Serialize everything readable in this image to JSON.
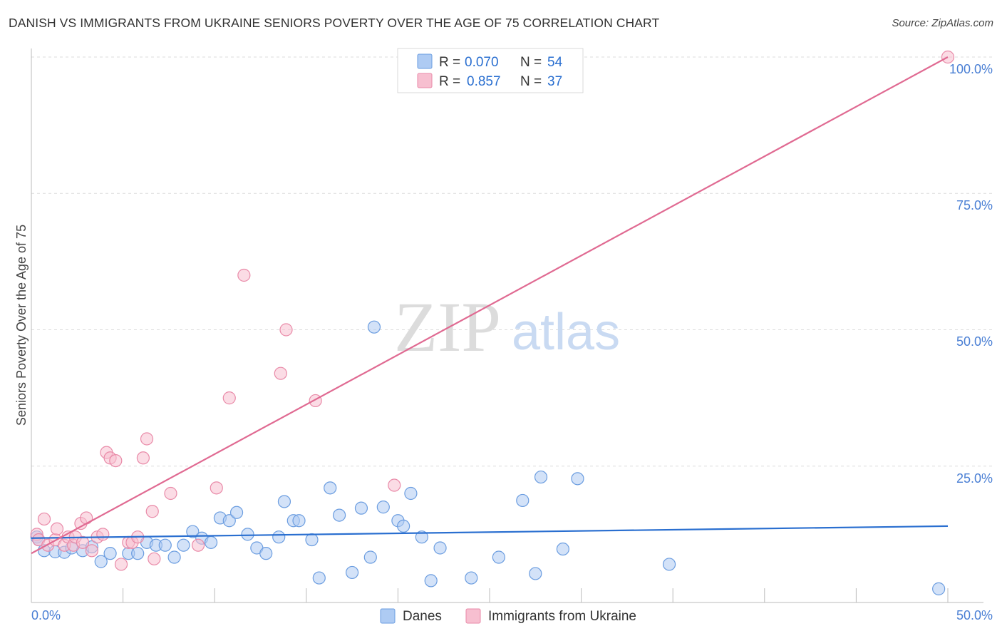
{
  "title": "DANISH VS IMMIGRANTS FROM UKRAINE SENIORS POVERTY OVER THE AGE OF 75 CORRELATION CHART",
  "source": "Source: ZipAtlas.com",
  "watermark": {
    "zip": "ZIP",
    "atlas": "atlas"
  },
  "colors": {
    "danes_fill": "#aecbf3",
    "danes_stroke": "#6b9de0",
    "danes_line": "#2a6fd0",
    "ukraine_fill": "#f7bfd0",
    "ukraine_stroke": "#e98aa8",
    "ukraine_line": "#e06a92",
    "grid": "#dcdcdc",
    "tick_text": "#4a7fd4"
  },
  "legend": {
    "rows": [
      {
        "r_label": "R =",
        "r_value": "0.070",
        "n_label": "N =",
        "n_value": "54"
      },
      {
        "r_label": "R =",
        "r_value": "0.857",
        "n_label": "N =",
        "n_value": "37"
      }
    ]
  },
  "chart_data": {
    "type": "scatter",
    "title": "DANISH VS IMMIGRANTS FROM UKRAINE SENIORS POVERTY OVER THE AGE OF 75 CORRELATION CHART",
    "xlabel": "",
    "ylabel": "Seniors Poverty Over the Age of 75",
    "xlim": [
      0,
      50
    ],
    "ylim": [
      0,
      100
    ],
    "x_tick_labels": [
      "0.0%",
      "50.0%"
    ],
    "y_tick_labels": [
      "25.0%",
      "50.0%",
      "75.0%",
      "100.0%"
    ],
    "y_tick_values": [
      25,
      50,
      75,
      100
    ],
    "grid": true,
    "legend_position": "top-center",
    "series": [
      {
        "name": "Danes",
        "r": 0.07,
        "n": 54,
        "trend": {
          "x": [
            0,
            50
          ],
          "y": [
            11.8,
            14.0
          ]
        },
        "points": [
          [
            0.3,
            12.0
          ],
          [
            0.4,
            11.5
          ],
          [
            0.7,
            9.5
          ],
          [
            1.3,
            9.3
          ],
          [
            1.8,
            9.2
          ],
          [
            2.2,
            10.0
          ],
          [
            2.8,
            9.5
          ],
          [
            3.3,
            10.2
          ],
          [
            3.8,
            7.5
          ],
          [
            4.3,
            9.0
          ],
          [
            5.3,
            9.0
          ],
          [
            5.8,
            9.0
          ],
          [
            6.3,
            11.0
          ],
          [
            6.8,
            10.5
          ],
          [
            7.3,
            10.5
          ],
          [
            7.8,
            8.3
          ],
          [
            8.3,
            10.5
          ],
          [
            8.8,
            13.0
          ],
          [
            9.3,
            11.8
          ],
          [
            9.8,
            11.0
          ],
          [
            10.3,
            15.5
          ],
          [
            10.8,
            15.0
          ],
          [
            11.2,
            16.5
          ],
          [
            11.8,
            12.5
          ],
          [
            12.3,
            10.0
          ],
          [
            12.8,
            9.0
          ],
          [
            13.5,
            12.0
          ],
          [
            13.8,
            18.5
          ],
          [
            14.3,
            15.0
          ],
          [
            14.6,
            15.0
          ],
          [
            15.3,
            11.5
          ],
          [
            15.7,
            4.5
          ],
          [
            16.3,
            21.0
          ],
          [
            16.8,
            16.0
          ],
          [
            17.5,
            5.5
          ],
          [
            18.0,
            17.3
          ],
          [
            18.5,
            8.3
          ],
          [
            18.7,
            50.5
          ],
          [
            19.2,
            17.5
          ],
          [
            20.0,
            15.0
          ],
          [
            20.3,
            14.0
          ],
          [
            20.7,
            20.0
          ],
          [
            21.3,
            12.0
          ],
          [
            21.8,
            4.0
          ],
          [
            22.3,
            10.0
          ],
          [
            24.0,
            4.5
          ],
          [
            25.5,
            8.3
          ],
          [
            26.8,
            18.7
          ],
          [
            27.5,
            5.3
          ],
          [
            27.8,
            23.0
          ],
          [
            29.0,
            9.8
          ],
          [
            29.8,
            22.7
          ],
          [
            34.8,
            7.0
          ],
          [
            49.5,
            2.5
          ]
        ]
      },
      {
        "name": "Immigrants from Ukraine",
        "r": 0.857,
        "n": 37,
        "trend": {
          "x": [
            0,
            50
          ],
          "y": [
            9.0,
            100.0
          ]
        },
        "points": [
          [
            0.3,
            12.5
          ],
          [
            0.4,
            11.5
          ],
          [
            0.7,
            15.3
          ],
          [
            0.9,
            10.5
          ],
          [
            1.3,
            11.5
          ],
          [
            1.4,
            13.5
          ],
          [
            1.8,
            10.5
          ],
          [
            2.0,
            12.0
          ],
          [
            2.3,
            10.5
          ],
          [
            2.4,
            12.0
          ],
          [
            2.7,
            14.5
          ],
          [
            2.8,
            11.0
          ],
          [
            3.0,
            15.5
          ],
          [
            3.3,
            9.5
          ],
          [
            3.6,
            12.0
          ],
          [
            3.9,
            12.5
          ],
          [
            4.1,
            27.5
          ],
          [
            4.3,
            26.5
          ],
          [
            4.6,
            26.0
          ],
          [
            4.9,
            7.0
          ],
          [
            5.3,
            11.0
          ],
          [
            5.5,
            11.0
          ],
          [
            5.8,
            12.0
          ],
          [
            6.1,
            26.5
          ],
          [
            6.3,
            30.0
          ],
          [
            6.6,
            16.7
          ],
          [
            6.7,
            8.0
          ],
          [
            7.6,
            20.0
          ],
          [
            9.1,
            10.5
          ],
          [
            10.1,
            21.0
          ],
          [
            10.8,
            37.5
          ],
          [
            11.6,
            60.0
          ],
          [
            13.6,
            42.0
          ],
          [
            13.9,
            50.0
          ],
          [
            15.5,
            37.0
          ],
          [
            19.8,
            21.5
          ],
          [
            50.0,
            100.0
          ]
        ]
      }
    ],
    "bottom_legend": [
      "Danes",
      "Immigrants from Ukraine"
    ]
  }
}
